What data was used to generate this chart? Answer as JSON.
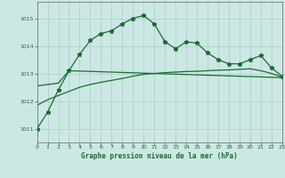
{
  "background_color": "#cce8e4",
  "plot_bg_color": "#cce8e4",
  "grid_color": "#aacccc",
  "line_color": "#1a6b30",
  "title": "Graphe pression niveau de la mer (hPa)",
  "xlim": [
    0,
    23
  ],
  "ylim": [
    1010.5,
    1015.6
  ],
  "yticks": [
    1011,
    1012,
    1013,
    1014,
    1015
  ],
  "xticks": [
    0,
    1,
    2,
    3,
    4,
    5,
    6,
    7,
    8,
    9,
    10,
    11,
    12,
    13,
    14,
    15,
    16,
    17,
    18,
    19,
    20,
    21,
    22,
    23
  ],
  "series1_x": [
    0,
    1,
    2,
    3,
    4,
    5,
    6,
    7,
    8,
    9,
    10,
    11,
    12,
    13,
    14,
    15,
    16,
    17,
    18,
    19,
    20,
    21,
    22,
    23
  ],
  "series1_y": [
    1011.0,
    1011.6,
    1012.4,
    1013.1,
    1013.7,
    1014.2,
    1014.45,
    1014.55,
    1014.8,
    1015.0,
    1015.1,
    1014.8,
    1014.15,
    1013.9,
    1014.15,
    1014.1,
    1013.75,
    1013.5,
    1013.35,
    1013.35,
    1013.5,
    1013.65,
    1013.2,
    1012.9
  ],
  "series2_x": [
    0,
    2,
    3,
    23
  ],
  "series2_y": [
    1012.55,
    1012.65,
    1013.1,
    1012.85
  ],
  "series3_x": [
    0,
    1,
    2,
    3,
    4,
    5,
    6,
    7,
    8,
    9,
    10,
    11,
    12,
    13,
    14,
    15,
    16,
    17,
    18,
    19,
    20,
    21,
    22,
    23
  ],
  "series3_y": [
    1011.85,
    1012.05,
    1012.2,
    1012.35,
    1012.5,
    1012.6,
    1012.68,
    1012.75,
    1012.82,
    1012.9,
    1012.97,
    1013.0,
    1013.03,
    1013.05,
    1013.07,
    1013.08,
    1013.1,
    1013.12,
    1013.13,
    1013.15,
    1013.17,
    1013.1,
    1013.0,
    1012.87
  ]
}
